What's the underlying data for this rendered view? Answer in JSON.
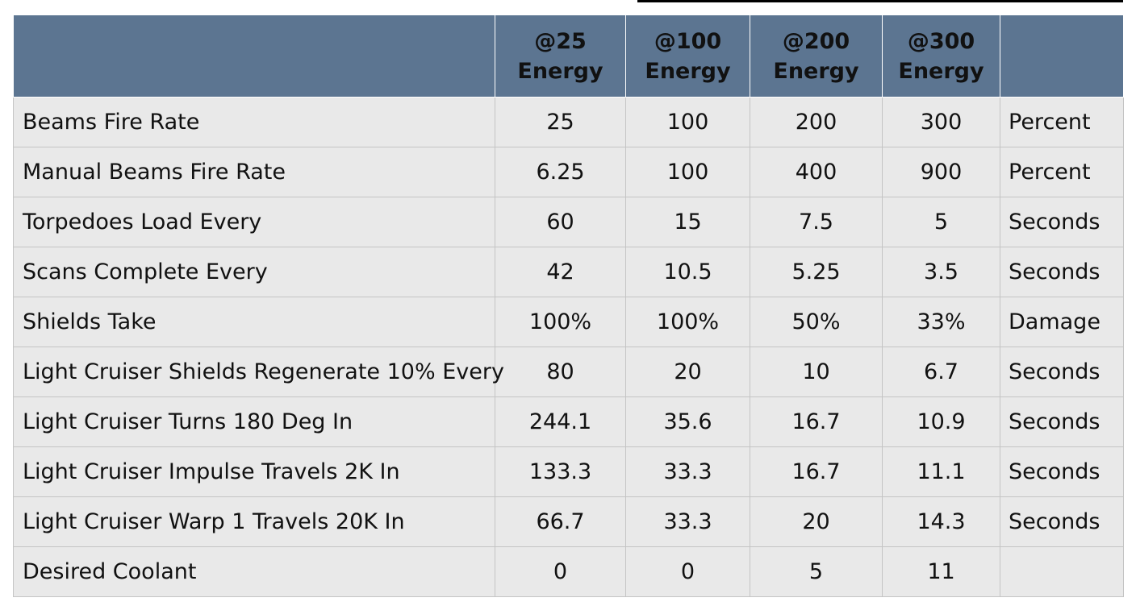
{
  "table": {
    "columns": [
      {
        "line1": "@25",
        "line2": "Energy"
      },
      {
        "line1": "@100",
        "line2": "Energy"
      },
      {
        "line1": "@200",
        "line2": "Energy"
      },
      {
        "line1": "@300",
        "line2": "Energy"
      }
    ],
    "rows": [
      {
        "label": "Beams Fire Rate",
        "values": [
          "25",
          "100",
          "200",
          "300"
        ],
        "unit": "Percent"
      },
      {
        "label": "Manual Beams Fire Rate",
        "values": [
          "6.25",
          "100",
          "400",
          "900"
        ],
        "unit": "Percent"
      },
      {
        "label": "Torpedoes Load Every",
        "values": [
          "60",
          "15",
          "7.5",
          "5"
        ],
        "unit": "Seconds"
      },
      {
        "label": "Scans Complete Every",
        "values": [
          "42",
          "10.5",
          "5.25",
          "3.5"
        ],
        "unit": "Seconds"
      },
      {
        "label": "Shields Take",
        "values": [
          "100%",
          "100%",
          "50%",
          "33%"
        ],
        "unit": "Damage"
      },
      {
        "label": "Light Cruiser Shields Regenerate 10% Every",
        "values": [
          "80",
          "20",
          "10",
          "6.7"
        ],
        "unit": "Seconds"
      },
      {
        "label": "Light Cruiser Turns 180 Deg In",
        "values": [
          "244.1",
          "35.6",
          "16.7",
          "10.9"
        ],
        "unit": "Seconds"
      },
      {
        "label": "Light Cruiser Impulse Travels 2K In",
        "values": [
          "133.3",
          "33.3",
          "16.7",
          "11.1"
        ],
        "unit": "Seconds"
      },
      {
        "label": "Light Cruiser Warp 1 Travels 20K In",
        "values": [
          "66.7",
          "33.3",
          "20",
          "14.3"
        ],
        "unit": "Seconds"
      },
      {
        "label": "Desired Coolant",
        "values": [
          "0",
          "0",
          "5",
          "11"
        ],
        "unit": ""
      }
    ]
  },
  "colors": {
    "header_bg": "#5c7591",
    "row_bg": "#e9e9e9",
    "accent_red": "#c0282d"
  }
}
